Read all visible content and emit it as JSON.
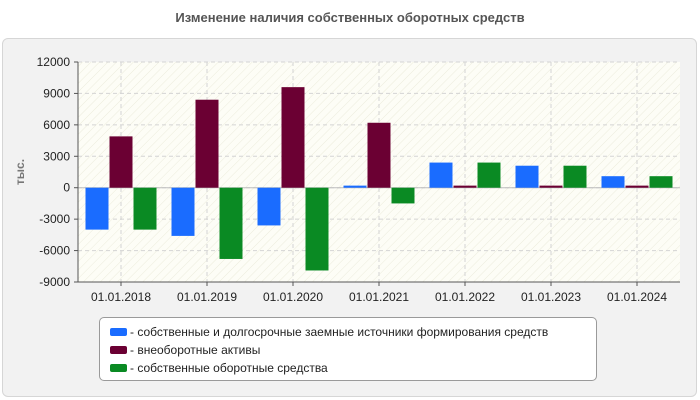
{
  "chart_data": {
    "type": "bar",
    "title": "Изменение наличия собственных оборотных средств",
    "ylabel": "тыс.",
    "xlabel": "",
    "ylim": [
      -9000,
      12000
    ],
    "yticks": [
      12000,
      9000,
      6000,
      3000,
      0,
      -3000,
      -6000,
      -9000
    ],
    "ytick_labels": [
      "12000",
      "9000",
      "6000",
      "3000",
      "0",
      "-3000",
      "-6000",
      "-9000"
    ],
    "categories": [
      "01.01.2018",
      "01.01.2019",
      "01.01.2020",
      "01.01.2021",
      "01.01.2022",
      "01.01.2023",
      "01.01.2024"
    ],
    "series": [
      {
        "name": "- собственные и долгосрочные заемные источники формирования средств",
        "color": "#1a6cff",
        "values": [
          -4000,
          -4600,
          -3600,
          200,
          2400,
          2100,
          1100
        ]
      },
      {
        "name": "- внеоборотные активы",
        "color": "#6b0033",
        "values": [
          4900,
          8400,
          9600,
          6200,
          200,
          200,
          200
        ]
      },
      {
        "name": "- собственные оборотные средства",
        "color": "#0a8a23",
        "values": [
          -4000,
          -6800,
          -7900,
          -1500,
          2400,
          2100,
          1100
        ]
      }
    ],
    "grid": true,
    "legend_position": "bottom"
  }
}
